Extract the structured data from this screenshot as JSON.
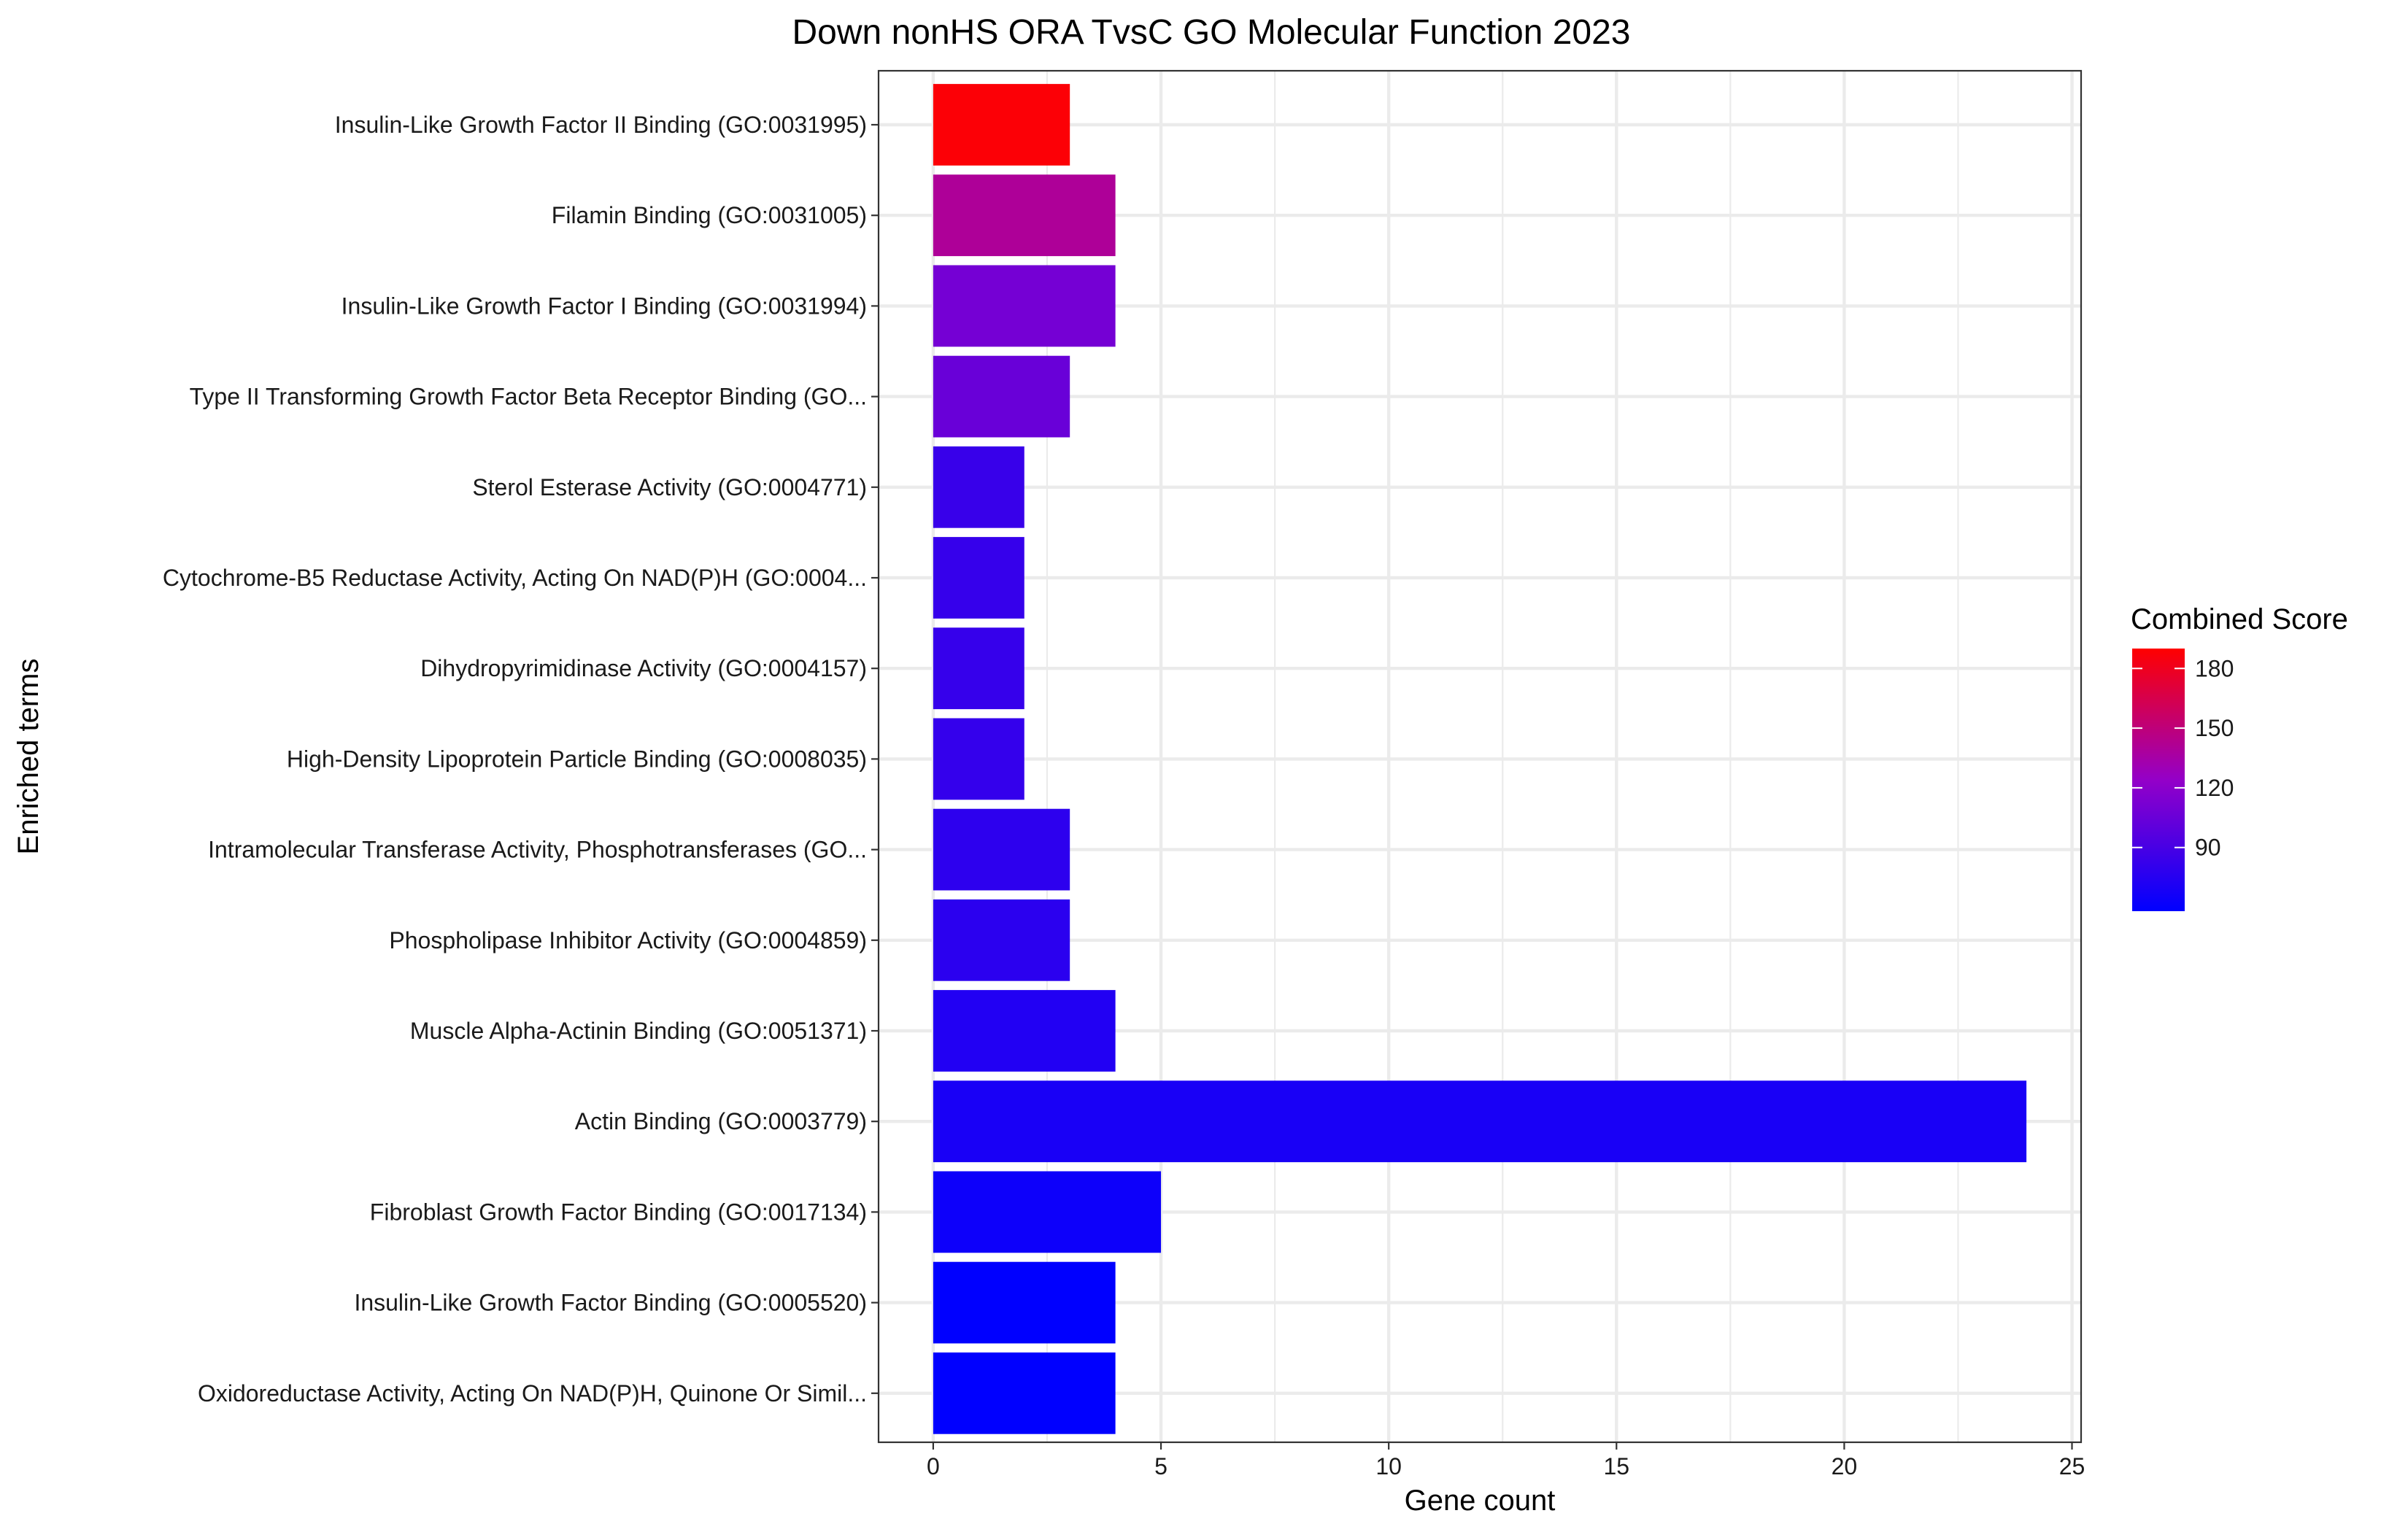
{
  "chart_data": {
    "type": "bar",
    "orientation": "horizontal",
    "title": "Down nonHS ORA TvsC GO Molecular Function 2023",
    "xlabel": "Gene count",
    "ylabel": "Enriched terms",
    "xlim": [
      -1.2,
      25.2
    ],
    "xticks": [
      0,
      5,
      10,
      15,
      20,
      25
    ],
    "grid": true,
    "categories": [
      "Insulin-Like Growth Factor II Binding (GO:0031995)",
      "Filamin Binding (GO:0031005)",
      "Insulin-Like Growth Factor I Binding (GO:0031994)",
      "Type II Transforming Growth Factor Beta Receptor Binding (GO...",
      "Sterol Esterase Activity (GO:0004771)",
      "Cytochrome-B5 Reductase Activity, Acting On NAD(P)H (GO:0004...",
      "Dihydropyrimidinase Activity (GO:0004157)",
      "High-Density Lipoprotein Particle Binding (GO:0008035)",
      "Intramolecular Transferase Activity, Phosphotransferases (GO...",
      "Phospholipase Inhibitor Activity (GO:0004859)",
      "Muscle Alpha-Actinin Binding (GO:0051371)",
      "Actin Binding (GO:0003779)",
      "Fibroblast Growth Factor Binding (GO:0017134)",
      "Insulin-Like Growth Factor Binding (GO:0005520)",
      "Oxidoreductase Activity, Acting On NAD(P)H, Quinone Or Simil..."
    ],
    "values": [
      3,
      4,
      4,
      3,
      2,
      2,
      2,
      2,
      3,
      3,
      4,
      24,
      5,
      4,
      4
    ],
    "combined_scores": [
      188,
      140,
      110,
      105,
      83,
      82,
      82,
      81,
      78,
      77,
      73,
      69,
      64,
      58,
      58
    ],
    "legend": {
      "title": "Combined Score",
      "placement": "right",
      "ticks": [
        90,
        120,
        150,
        180
      ],
      "range": [
        58,
        190
      ],
      "low_color": "#0000ff",
      "high_color": "#ff0000"
    }
  }
}
